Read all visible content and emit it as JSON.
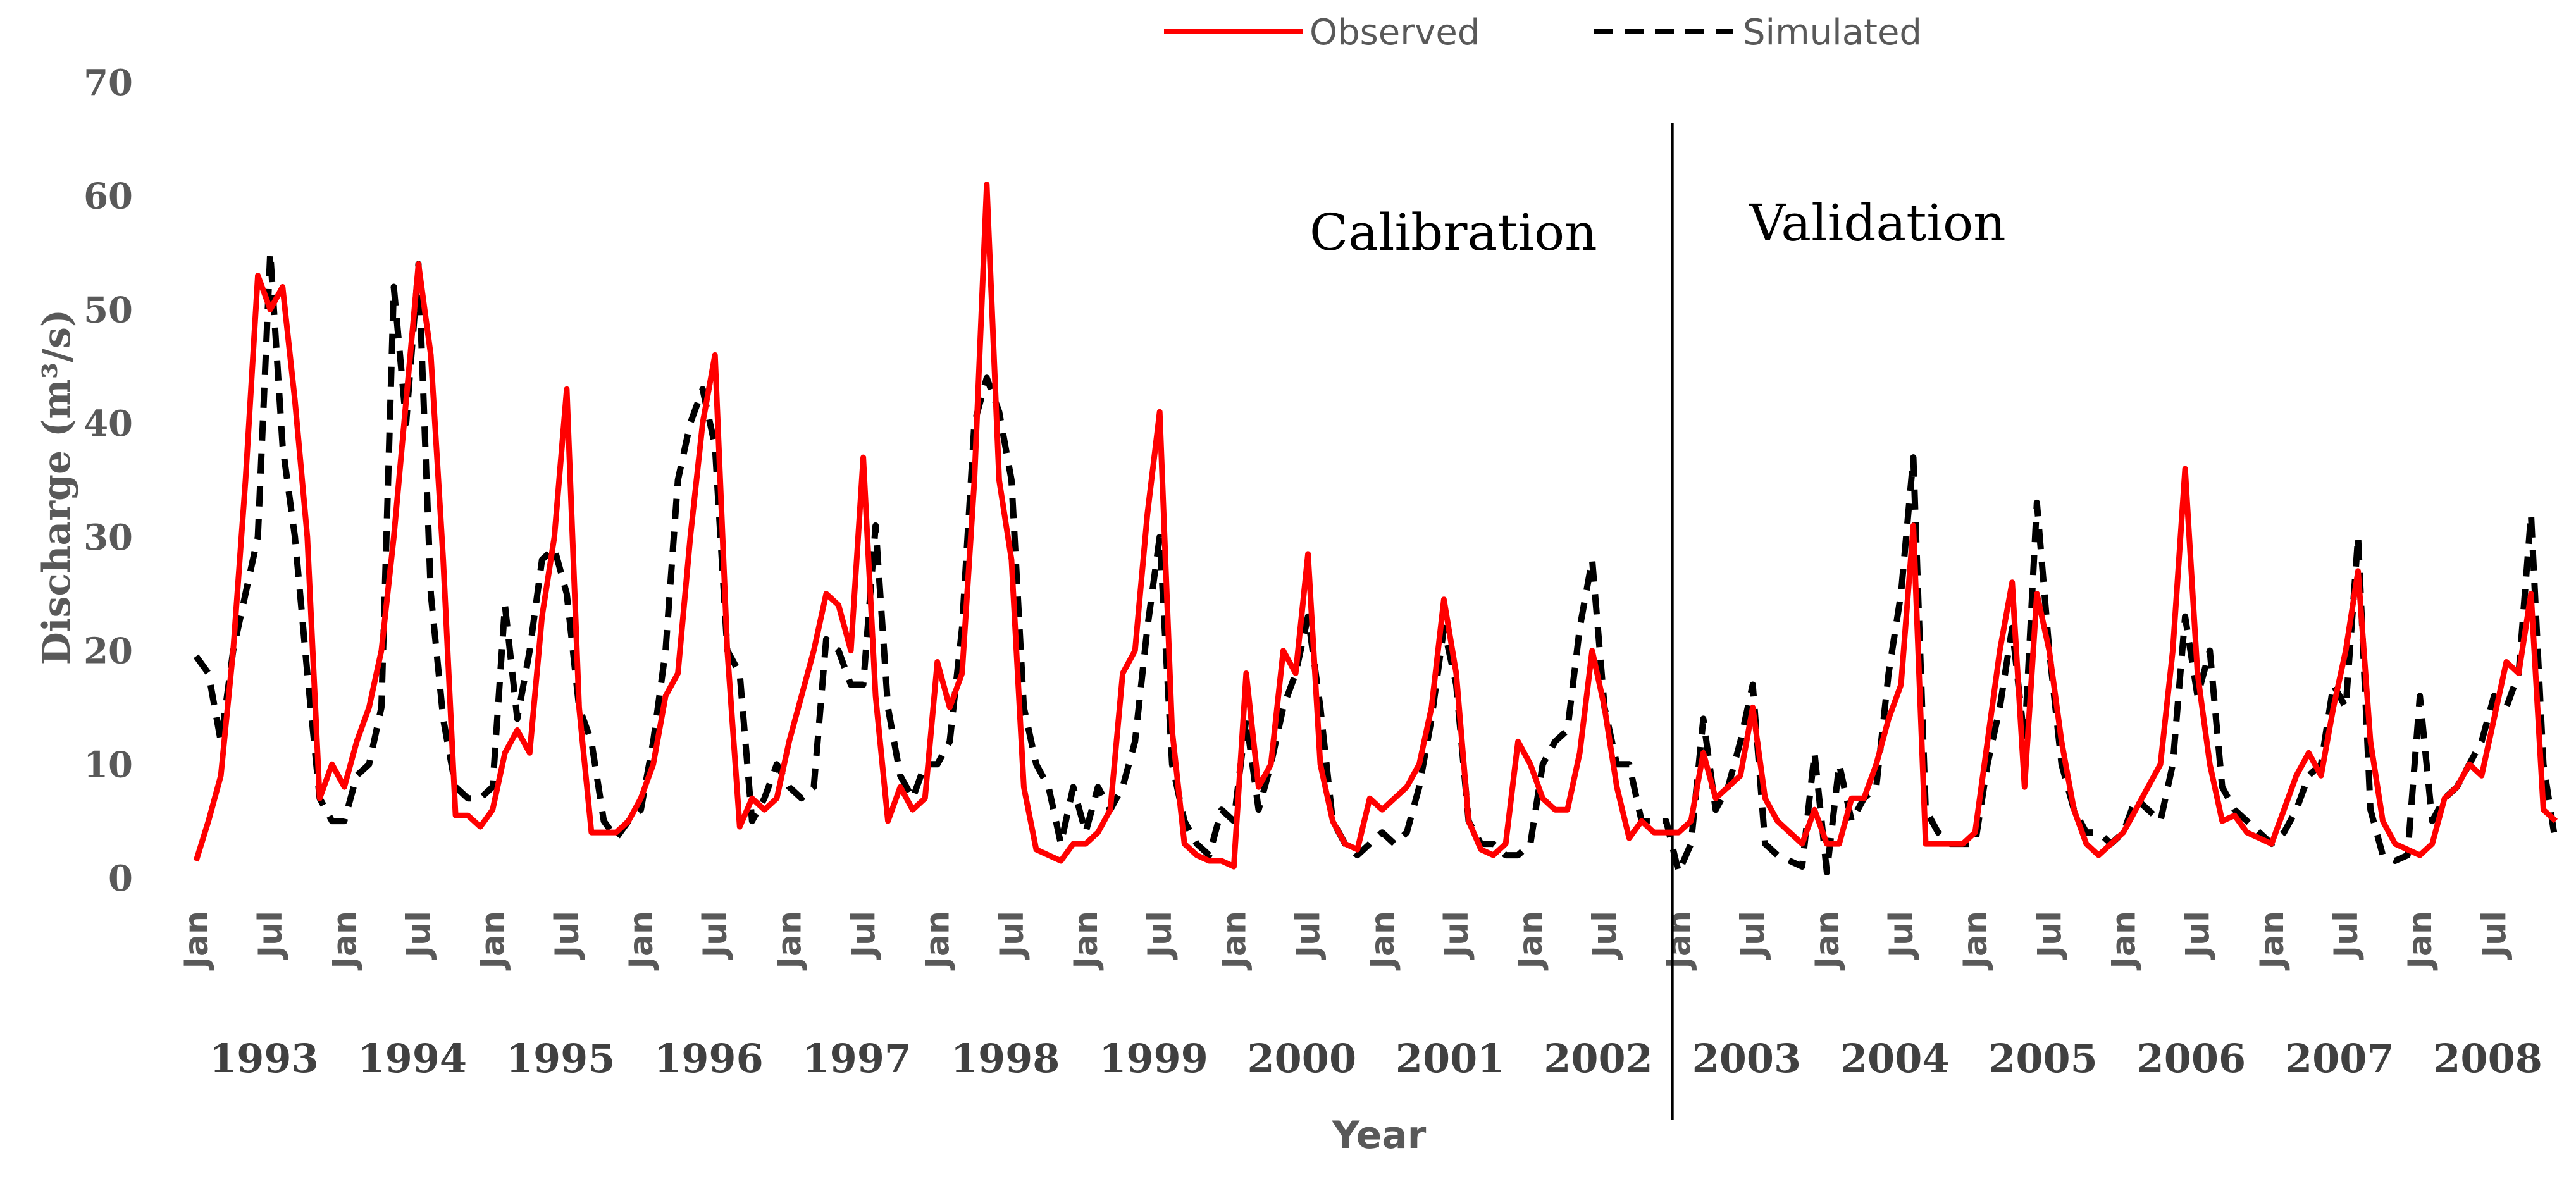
{
  "chart_data": {
    "type": "line",
    "title": "",
    "xlabel": "Year",
    "ylabel": "Discharge (m³/s)",
    "ylim": [
      0,
      70
    ],
    "yticks": [
      0,
      10,
      20,
      30,
      40,
      50,
      60,
      70
    ],
    "month_tick_labels": [
      "Jan",
      "Jul"
    ],
    "years": [
      "1993",
      "1994",
      "1995",
      "1996",
      "1997",
      "1998",
      "1999",
      "2000",
      "2001",
      "2002",
      "2003",
      "2004",
      "2005",
      "2006",
      "2007",
      "2008"
    ],
    "x_unit": "month index (0 = Jan 1993)",
    "annotations": [
      {
        "text": "Calibration"
      },
      {
        "text": "Validation"
      }
    ],
    "divider_x": 120,
    "legend": {
      "placement": "top-center"
    },
    "series": [
      {
        "name": "Observed",
        "color": "#ff0000",
        "style": "solid",
        "values": [
          1.5,
          5,
          9,
          20,
          35,
          53,
          50,
          52,
          42,
          30,
          7,
          10,
          8,
          12,
          15,
          20,
          30,
          42,
          54,
          46,
          28,
          5.5,
          5.5,
          4.5,
          6,
          11,
          13,
          11,
          23,
          30,
          43,
          15,
          4,
          4,
          4,
          5,
          7,
          10,
          16,
          18,
          30,
          40,
          46,
          20,
          4.5,
          7,
          6,
          7,
          12,
          16,
          20,
          25,
          24,
          20,
          37,
          16,
          5,
          8,
          6,
          7,
          19,
          15,
          18,
          35,
          61,
          35,
          28,
          8,
          2.5,
          2,
          1.5,
          3,
          3,
          4,
          6,
          18,
          20,
          32,
          41,
          13,
          3,
          2,
          1.5,
          1.5,
          1,
          18,
          8,
          10,
          20,
          18,
          28.5,
          10,
          5,
          3,
          2.5,
          7,
          6,
          7,
          8,
          10,
          15,
          24.5,
          18,
          5,
          2.5,
          2,
          3,
          12,
          10,
          7,
          6,
          6,
          11,
          20,
          15,
          8,
          3.5,
          5,
          4,
          4,
          4,
          5,
          11,
          7,
          8,
          9,
          15,
          7,
          5,
          4,
          3,
          6,
          3,
          3,
          7,
          7,
          10,
          14,
          17,
          31,
          3,
          3,
          3,
          3,
          4,
          12,
          20,
          26,
          8,
          25,
          20,
          12,
          6,
          3,
          2,
          3,
          4,
          6,
          8,
          10,
          20,
          36,
          18,
          10,
          5,
          5.5,
          4,
          3.5,
          3,
          6,
          9,
          11,
          9,
          15,
          20,
          27,
          12,
          5,
          3,
          2.5,
          2,
          3,
          7,
          8,
          10,
          9,
          14,
          19,
          18,
          25,
          6,
          5
        ]
      },
      {
        "name": "Simulated",
        "color": "#000000",
        "style": "dashed",
        "values": [
          19.5,
          18,
          12,
          20,
          25,
          30,
          55,
          38,
          30,
          18,
          7,
          5,
          5,
          9,
          10,
          15,
          52,
          40,
          54,
          25,
          14,
          8,
          7,
          7,
          8,
          24,
          14,
          20,
          28,
          29,
          25,
          15,
          12,
          5,
          3.5,
          5,
          6,
          12,
          20,
          35,
          40,
          43,
          38,
          20,
          18,
          5,
          7,
          10,
          8,
          7,
          8,
          21,
          20,
          17,
          17,
          31,
          15,
          9,
          7,
          10,
          10,
          12,
          22,
          40,
          44,
          41,
          35,
          15,
          10,
          8,
          3,
          8,
          4,
          8,
          6,
          8,
          12,
          22,
          30,
          10,
          5,
          3,
          2,
          6,
          5,
          14,
          6,
          10,
          15,
          18,
          23,
          15,
          5,
          3,
          2,
          3,
          4,
          3,
          4,
          8,
          14,
          22,
          17,
          5,
          3,
          3,
          2,
          2,
          3,
          10,
          12,
          13,
          22,
          28,
          15,
          10,
          10,
          5,
          5,
          5,
          0.5,
          3,
          14,
          6,
          8,
          12,
          17,
          3,
          2,
          1.5,
          1,
          11,
          0.5,
          10,
          5,
          7,
          8,
          18,
          25,
          37,
          6,
          4,
          3,
          3,
          3,
          10,
          15,
          22,
          12,
          33,
          20,
          10,
          6,
          4,
          4,
          3,
          4,
          7,
          6,
          5,
          10,
          23,
          16,
          20,
          8,
          6,
          5,
          4,
          3,
          4,
          6,
          9,
          10,
          17,
          15,
          30,
          6,
          2,
          1.5,
          2,
          16,
          5,
          7,
          8,
          10,
          12,
          16,
          15,
          18,
          32,
          10,
          3
        ]
      }
    ]
  }
}
